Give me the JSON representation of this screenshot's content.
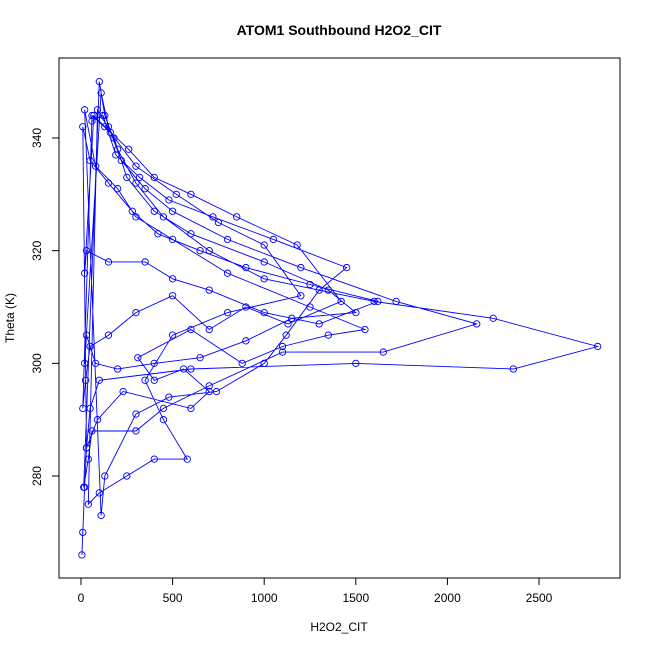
{
  "chart_data": {
    "type": "line",
    "title": "ATOM1 Southbound H2O2_CIT",
    "x_label": "H2O2_CIT",
    "y_label": "Theta (K)",
    "series": [
      {
        "color": "#0000ff",
        "x": [
          5,
          10,
          20,
          30,
          50,
          100,
          600,
          1500,
          2360,
          2820,
          2250,
          1600,
          1000,
          700,
          450,
          300,
          200,
          130,
          100,
          15,
          40,
          60,
          300,
          450,
          700,
          1100,
          1650,
          2160,
          1720,
          1200,
          800,
          500,
          350,
          220,
          150,
          110,
          20,
          30,
          80,
          200,
          400,
          650,
          900,
          1150,
          1500,
          1350,
          1000,
          600,
          400,
          250,
          180,
          90,
          40,
          100,
          250,
          400,
          580,
          450,
          350,
          500,
          800,
          1200,
          1000,
          750,
          520,
          300,
          160,
          60,
          10,
          25,
          50,
          150,
          300,
          500,
          700,
          900,
          1130,
          1420,
          1180,
          850,
          600,
          400,
          260,
          130,
          70,
          20,
          30,
          150,
          350,
          500,
          700,
          1000,
          1300,
          1620,
          1250,
          900,
          650,
          420,
          280,
          150,
          50,
          10,
          30,
          90,
          230,
          600,
          700,
          560,
          400,
          310,
          600,
          880,
          1100,
          1350,
          1550,
          1250,
          800,
          500,
          300,
          200,
          80,
          20,
          110,
          130,
          300,
          480,
          740,
          1000,
          1120,
          1300,
          1450,
          1050,
          720,
          480,
          320,
          190,
          120,
          60
        ],
        "values": [
          266,
          270,
          278,
          285,
          292,
          297,
          299,
          300,
          299,
          303,
          308,
          311,
          315,
          320,
          326,
          332,
          338,
          344,
          350,
          278,
          283,
          288,
          288,
          292,
          296,
          302,
          302,
          307,
          311,
          317,
          322,
          327,
          331,
          336,
          342,
          348,
          300,
          305,
          300,
          299,
          300,
          301,
          304,
          308,
          309,
          313,
          318,
          323,
          327,
          333,
          340,
          345,
          275,
          277,
          280,
          283,
          283,
          290,
          297,
          305,
          309,
          312,
          321,
          325,
          330,
          335,
          341,
          344,
          292,
          297,
          303,
          305,
          309,
          312,
          306,
          310,
          307,
          311,
          321,
          326,
          330,
          333,
          338,
          342,
          344,
          316,
          320,
          318,
          318,
          315,
          313,
          309,
          307,
          311,
          314,
          317,
          320,
          323,
          327,
          332,
          336,
          342,
          285,
          290,
          295,
          292,
          295,
          299,
          297,
          301,
          306,
          300,
          303,
          305,
          306,
          310,
          316,
          322,
          326,
          331,
          335,
          345,
          273,
          280,
          291,
          294,
          295,
          300,
          305,
          313,
          317,
          322,
          326,
          329,
          333,
          337,
          344,
          343
        ]
      }
    ],
    "xlim": [
      -120,
      2942
    ],
    "ylim": [
      261.9,
      354.2
    ],
    "xticks": [
      0,
      500,
      1000,
      1500,
      2000,
      2500
    ],
    "yticks": [
      280,
      300,
      320,
      340
    ]
  }
}
